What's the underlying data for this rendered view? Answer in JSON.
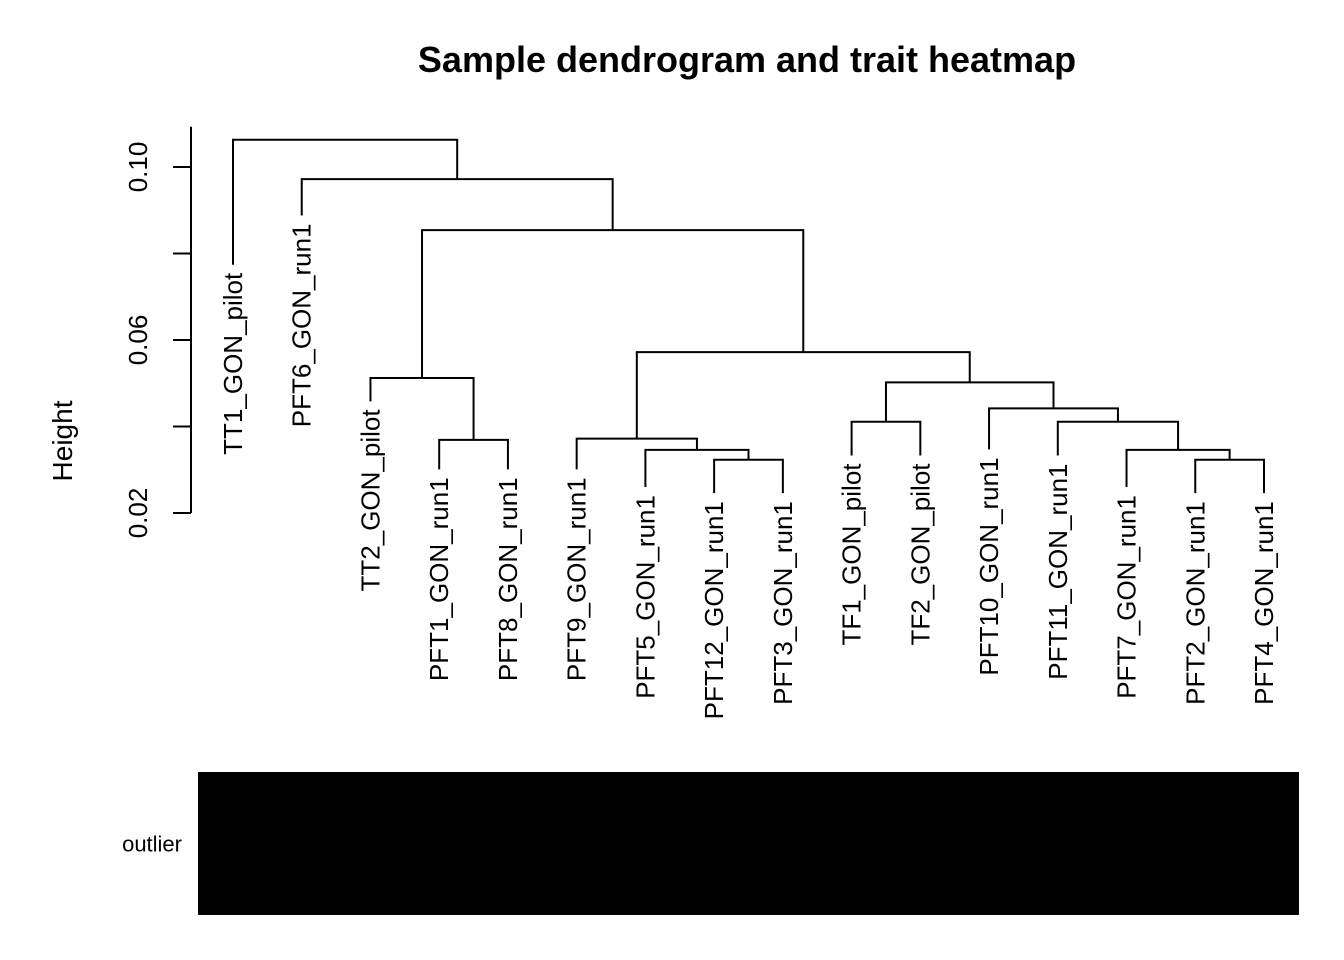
{
  "chart_data": {
    "type": "dendrogram",
    "title": "Sample dendrogram and trait heatmap",
    "ylabel": "Height",
    "ylim": [
      0.02,
      0.11
    ],
    "yticks": [
      0.02,
      0.06,
      0.1
    ],
    "ytick_labels": [
      "0.02",
      "0.06",
      "0.10"
    ],
    "leaves": [
      {
        "label": "TT1_GON_pilot",
        "bottom": 0.0774
      },
      {
        "label": "PFT6_GON_run1",
        "bottom": 0.0888
      },
      {
        "label": "TT2_GON_pilot",
        "bottom": 0.0458
      },
      {
        "label": "PFT1_GON_run1",
        "bottom": 0.0301
      },
      {
        "label": "PFT8_GON_run1",
        "bottom": 0.0301
      },
      {
        "label": "PFT9_GON_run1",
        "bottom": 0.0301
      },
      {
        "label": "PFT5_GON_run1",
        "bottom": 0.026
      },
      {
        "label": "PFT12_GON_run1",
        "bottom": 0.0246
      },
      {
        "label": "PFT3_GON_run1",
        "bottom": 0.0246
      },
      {
        "label": "TF1_GON_pilot",
        "bottom": 0.0333
      },
      {
        "label": "TF2_GON_pilot",
        "bottom": 0.0333
      },
      {
        "label": "PFT10_GON_run1",
        "bottom": 0.0347
      },
      {
        "label": "PFT11_GON_run1",
        "bottom": 0.0333
      },
      {
        "label": "PFT7_GON_run1",
        "bottom": 0.026
      },
      {
        "label": "PFT2_GON_run1",
        "bottom": 0.0246
      },
      {
        "label": "PFT4_GON_run1",
        "bottom": 0.0246
      }
    ],
    "merges": [
      {
        "a": "L3",
        "b": "L4",
        "height": 0.0369
      },
      {
        "a": "L7",
        "b": "L8",
        "height": 0.0323
      },
      {
        "a": "L14",
        "b": "L15",
        "height": 0.0323
      },
      {
        "a": "L6",
        "b": "M1",
        "height": 0.0346
      },
      {
        "a": "L13",
        "b": "M2",
        "height": 0.0346
      },
      {
        "a": "L9",
        "b": "L10",
        "height": 0.0411
      },
      {
        "a": "L12",
        "b": "M4",
        "height": 0.0411
      },
      {
        "a": "L5",
        "b": "M3",
        "height": 0.0372
      },
      {
        "a": "L11",
        "b": "M6",
        "height": 0.0442
      },
      {
        "a": "L2",
        "b": "M0",
        "height": 0.0512
      },
      {
        "a": "M5",
        "b": "M8",
        "height": 0.0502
      },
      {
        "a": "M7",
        "b": "M10",
        "height": 0.0572
      },
      {
        "a": "M9",
        "b": "M11",
        "height": 0.0854
      },
      {
        "a": "L1",
        "b": "M12",
        "height": 0.0972
      },
      {
        "a": "L0",
        "b": "M13",
        "height": 0.1063
      }
    ],
    "traits": [
      {
        "name": "outlier",
        "color": "#000000"
      }
    ]
  }
}
